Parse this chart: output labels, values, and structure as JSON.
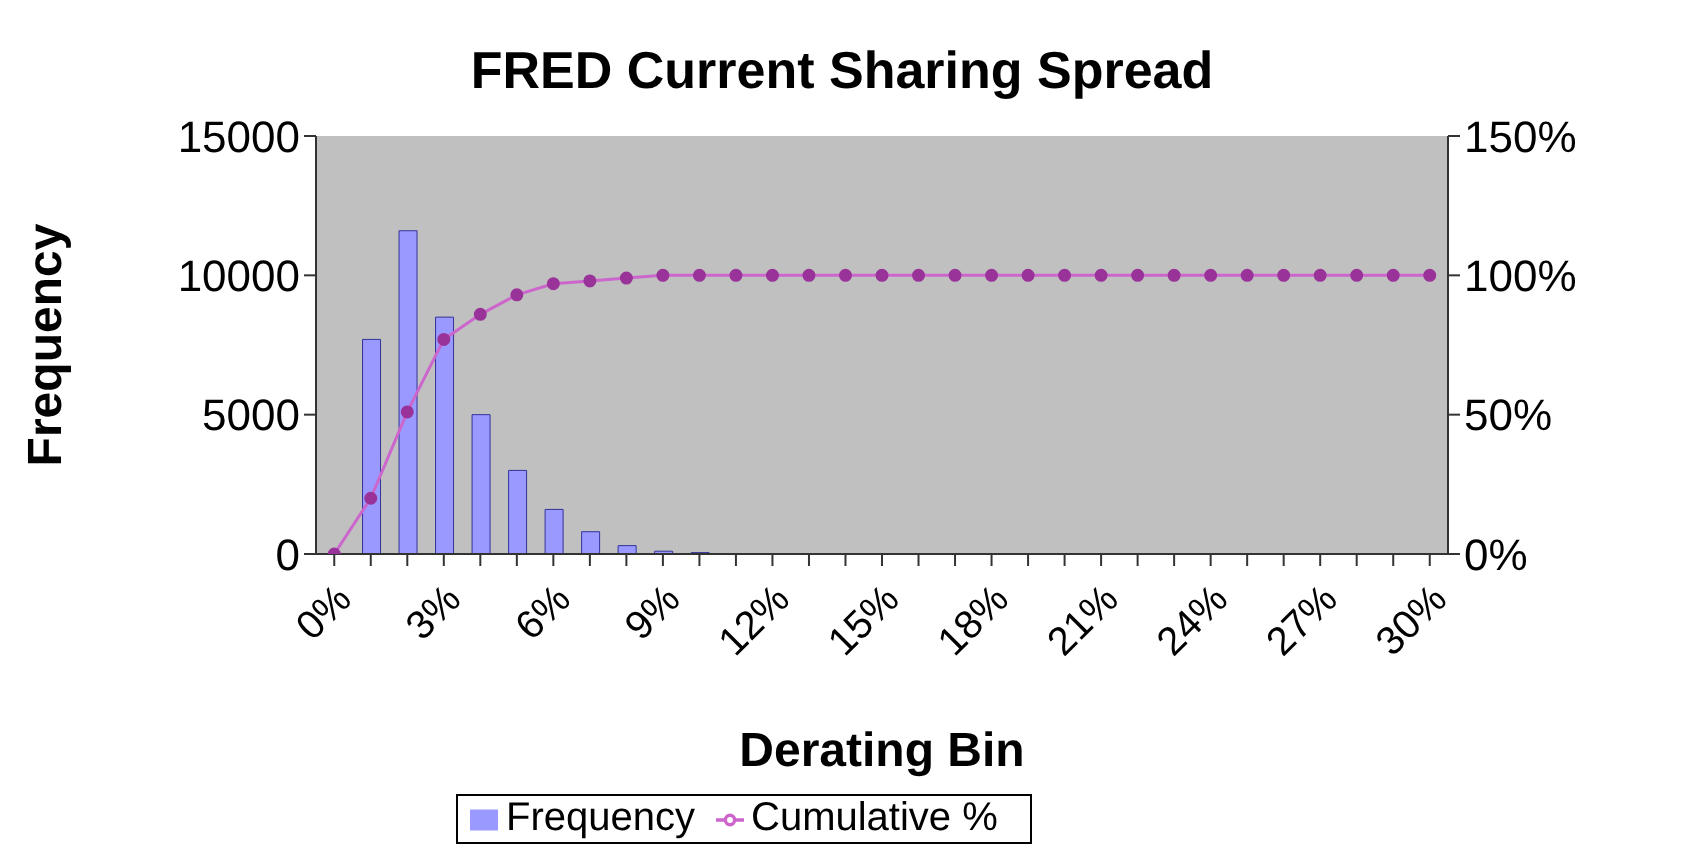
{
  "chart_data": {
    "type": "bar",
    "title": "FRED Current Sharing Spread",
    "xlabel": "Derating Bin",
    "ylabel": "Frequency",
    "categories": [
      "0%",
      null,
      null,
      "3%",
      null,
      null,
      "6%",
      null,
      null,
      "9%",
      null,
      null,
      "12%",
      null,
      null,
      "15%",
      null,
      null,
      "18%",
      null,
      null,
      "21%",
      null,
      null,
      "24%",
      null,
      null,
      "27%",
      null,
      null,
      "30%"
    ],
    "series": [
      {
        "name": "Frequency",
        "color": "#9999ff",
        "values": [
          0,
          7700,
          11600,
          8500,
          5000,
          3000,
          1600,
          800,
          300,
          100,
          50,
          0,
          0,
          0,
          0,
          0,
          0,
          0,
          0,
          0,
          0,
          0,
          0,
          0,
          0,
          0,
          0,
          0,
          0,
          0,
          0
        ]
      },
      {
        "name": "Cumulative %",
        "type": "line",
        "axis": "y2",
        "color": "#cc66cc",
        "marker": "circle",
        "values": [
          0,
          20,
          51,
          77,
          86,
          93,
          97,
          98,
          99,
          100,
          100,
          100,
          100,
          100,
          100,
          100,
          100,
          100,
          100,
          100,
          100,
          100,
          100,
          100,
          100,
          100,
          100,
          100,
          100,
          100,
          100
        ]
      }
    ],
    "ylim": [
      0,
      15000
    ],
    "yticks": [
      0,
      5000,
      10000,
      15000
    ],
    "y2lim": [
      0,
      150
    ],
    "y2ticks": [
      {
        "value": 0,
        "label": "0%"
      },
      {
        "value": 50,
        "label": "50%"
      },
      {
        "value": 100,
        "label": "100%"
      },
      {
        "value": 150,
        "label": "150%"
      }
    ],
    "legend": "bottom",
    "line_style": "solid"
  }
}
